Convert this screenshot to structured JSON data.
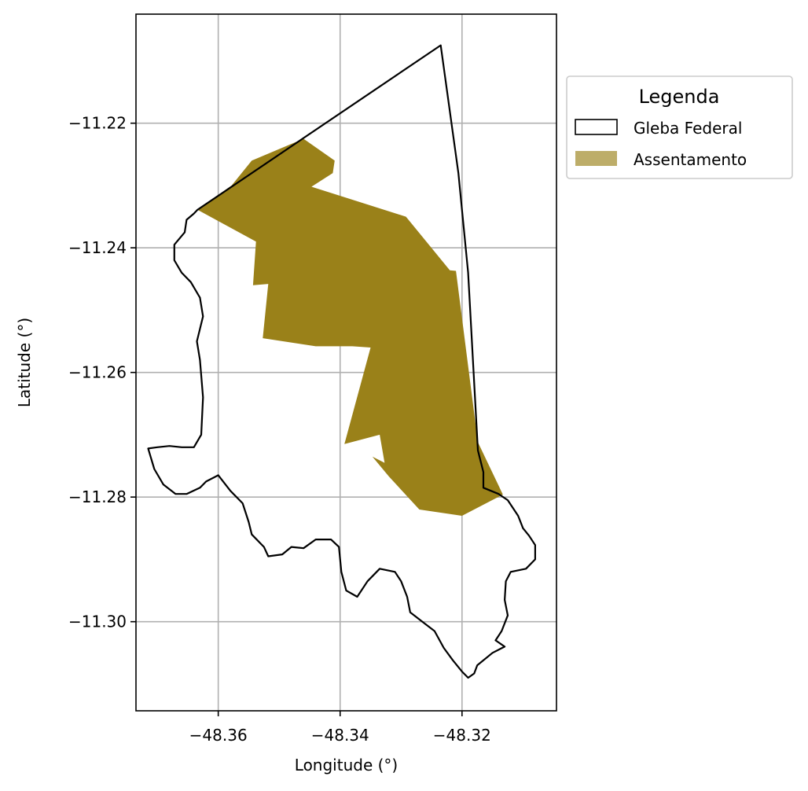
{
  "chart_data": {
    "type": "map",
    "title": "",
    "xlabel": "Longitude (°)",
    "ylabel": "Latitude (°)",
    "xlim": [
      -48.3735,
      -48.3045
    ],
    "ylim": [
      -11.3143,
      -11.2025
    ],
    "xticks": [
      -48.36,
      -48.34,
      -48.32
    ],
    "xtick_labels": [
      "−48.36",
      "−48.34",
      "−48.32"
    ],
    "yticks": [
      -11.22,
      -11.24,
      -11.26,
      -11.28,
      -11.3
    ],
    "ytick_labels": [
      "−11.22",
      "−11.24",
      "−11.26",
      "−11.28",
      "−11.30"
    ],
    "grid": true,
    "legend": {
      "title": "Legenda",
      "placement": "outside-upper-right",
      "entries": [
        {
          "label": "Gleba Federal",
          "style": "outline",
          "edge": "#000000",
          "fill": "none"
        },
        {
          "label": "Assentamento",
          "style": "filled",
          "fill": "#9a8119",
          "alpha": 0.65
        }
      ]
    },
    "colors": {
      "assentamento": "#9a8119",
      "gleba_edge": "#000000",
      "grid": "#b0b0b0"
    },
    "series": [
      {
        "name": "Assentamento",
        "geometry": "polygon",
        "coords": [
          [
            -48.3634,
            -11.2339
          ],
          [
            -48.3578,
            -11.23
          ],
          [
            -48.3545,
            -11.226
          ],
          [
            -48.346,
            -11.2225
          ],
          [
            -48.3409,
            -11.226
          ],
          [
            -48.3412,
            -11.228
          ],
          [
            -48.3447,
            -11.2302
          ],
          [
            -48.3292,
            -11.235
          ],
          [
            -48.322,
            -11.2436
          ],
          [
            -48.321,
            -11.2437
          ],
          [
            -48.3174,
            -11.2712
          ],
          [
            -48.3133,
            -11.2796
          ],
          [
            -48.32,
            -11.283
          ],
          [
            -48.327,
            -11.282
          ],
          [
            -48.332,
            -11.2767
          ],
          [
            -48.3347,
            -11.2735
          ],
          [
            -48.3327,
            -11.2745
          ],
          [
            -48.3335,
            -11.27
          ],
          [
            -48.3393,
            -11.2715
          ],
          [
            -48.335,
            -11.256
          ],
          [
            -48.338,
            -11.2558
          ],
          [
            -48.344,
            -11.2558
          ],
          [
            -48.3527,
            -11.2545
          ],
          [
            -48.3518,
            -11.2458
          ],
          [
            -48.3543,
            -11.246
          ],
          [
            -48.3538,
            -11.239
          ]
        ]
      },
      {
        "name": "Gleba Federal",
        "geometry": "polygon",
        "coords": [
          [
            -48.3634,
            -11.2339
          ],
          [
            -48.3235,
            -11.2075
          ],
          [
            -48.3206,
            -11.228
          ],
          [
            -48.319,
            -11.244
          ],
          [
            -48.3174,
            -11.2725
          ],
          [
            -48.3165,
            -11.276
          ],
          [
            -48.3165,
            -11.2785
          ],
          [
            -48.314,
            -11.2795
          ],
          [
            -48.3125,
            -11.2805
          ],
          [
            -48.3108,
            -11.283
          ],
          [
            -48.31,
            -11.285
          ],
          [
            -48.309,
            -11.2862
          ],
          [
            -48.308,
            -11.2877
          ],
          [
            -48.308,
            -11.29
          ],
          [
            -48.3095,
            -11.2915
          ],
          [
            -48.312,
            -11.292
          ],
          [
            -48.3128,
            -11.2935
          ],
          [
            -48.313,
            -11.2965
          ],
          [
            -48.3125,
            -11.299
          ],
          [
            -48.3135,
            -11.3015
          ],
          [
            -48.3145,
            -11.303
          ],
          [
            -48.313,
            -11.304
          ],
          [
            -48.315,
            -11.305
          ],
          [
            -48.3175,
            -11.307
          ],
          [
            -48.318,
            -11.3083
          ],
          [
            -48.319,
            -11.309
          ],
          [
            -48.32,
            -11.308
          ],
          [
            -48.3215,
            -11.3062
          ],
          [
            -48.323,
            -11.3042
          ],
          [
            -48.3245,
            -11.3015
          ],
          [
            -48.3265,
            -11.3
          ],
          [
            -48.3285,
            -11.2985
          ],
          [
            -48.329,
            -11.296
          ],
          [
            -48.33,
            -11.2935
          ],
          [
            -48.331,
            -11.292
          ],
          [
            -48.3335,
            -11.2915
          ],
          [
            -48.3355,
            -11.2935
          ],
          [
            -48.3372,
            -11.296
          ],
          [
            -48.339,
            -11.295
          ],
          [
            -48.3398,
            -11.292
          ],
          [
            -48.3402,
            -11.288
          ],
          [
            -48.3415,
            -11.2868
          ],
          [
            -48.344,
            -11.2868
          ],
          [
            -48.346,
            -11.2882
          ],
          [
            -48.348,
            -11.288
          ],
          [
            -48.3495,
            -11.2892
          ],
          [
            -48.3518,
            -11.2895
          ],
          [
            -48.3525,
            -11.288
          ],
          [
            -48.3545,
            -11.286
          ],
          [
            -48.355,
            -11.284
          ],
          [
            -48.356,
            -11.281
          ],
          [
            -48.358,
            -11.279
          ],
          [
            -48.36,
            -11.2765
          ],
          [
            -48.362,
            -11.2775
          ],
          [
            -48.363,
            -11.2785
          ],
          [
            -48.3652,
            -11.2795
          ],
          [
            -48.367,
            -11.2795
          ],
          [
            -48.369,
            -11.278
          ],
          [
            -48.3705,
            -11.2755
          ],
          [
            -48.3715,
            -11.2722
          ],
          [
            -48.37,
            -11.272
          ],
          [
            -48.368,
            -11.2718
          ],
          [
            -48.366,
            -11.272
          ],
          [
            -48.364,
            -11.272
          ],
          [
            -48.3628,
            -11.27
          ],
          [
            -48.3625,
            -11.264
          ],
          [
            -48.363,
            -11.258
          ],
          [
            -48.3635,
            -11.255
          ],
          [
            -48.3625,
            -11.251
          ],
          [
            -48.363,
            -11.248
          ],
          [
            -48.3645,
            -11.2455
          ],
          [
            -48.366,
            -11.244
          ],
          [
            -48.3672,
            -11.242
          ],
          [
            -48.3672,
            -11.2395
          ],
          [
            -48.3655,
            -11.2375
          ],
          [
            -48.3652,
            -11.2355
          ],
          [
            -48.364,
            -11.2345
          ]
        ]
      }
    ]
  }
}
